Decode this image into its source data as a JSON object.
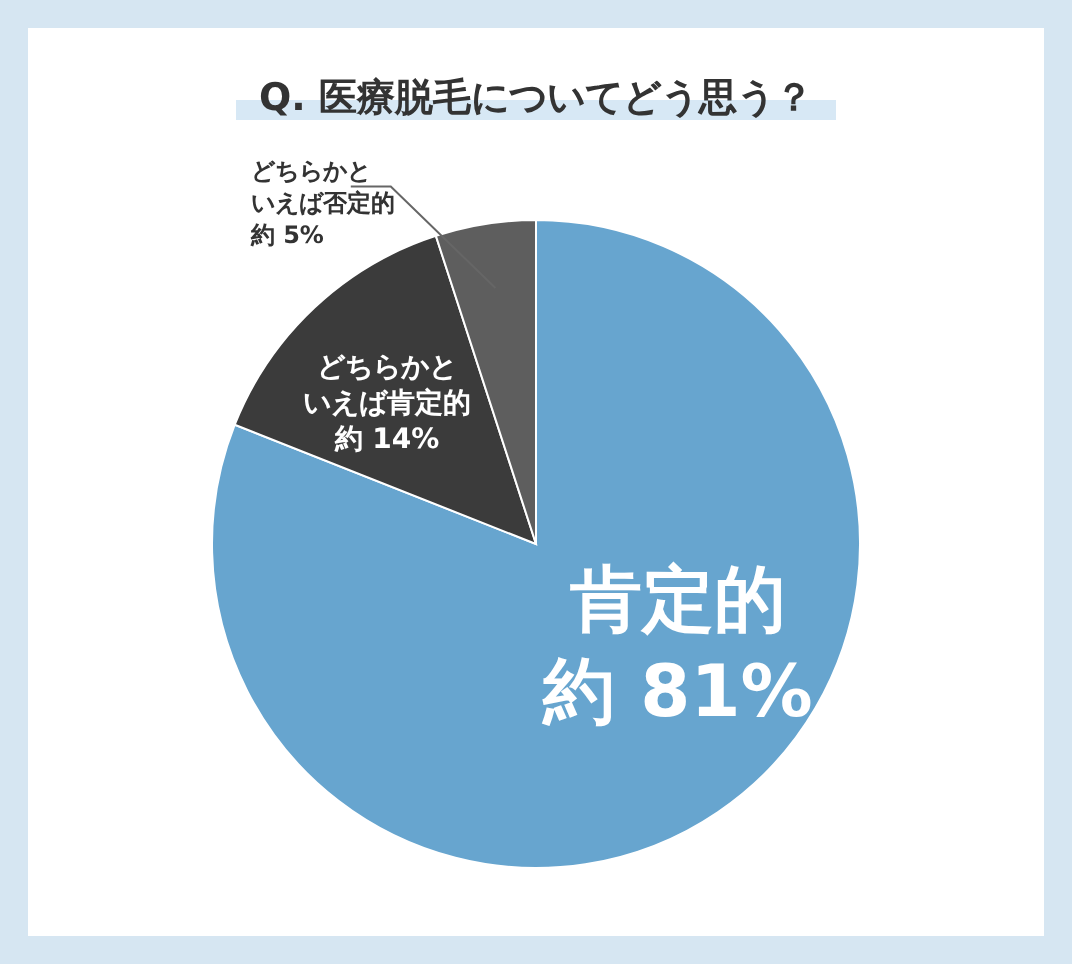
{
  "chart_data": {
    "type": "pie",
    "title": "Q. 医療脱毛についてどう思う？",
    "categories": [
      "肯定的",
      "どちらかといえば肯定的",
      "どちらかといえば否定的"
    ],
    "values": [
      81,
      14,
      5
    ],
    "value_labels": [
      "約 81%",
      "約 14%",
      "約 5%"
    ],
    "colors": [
      "#67a5cf",
      "#3b3b3b",
      "#5e5e5e"
    ]
  }
}
